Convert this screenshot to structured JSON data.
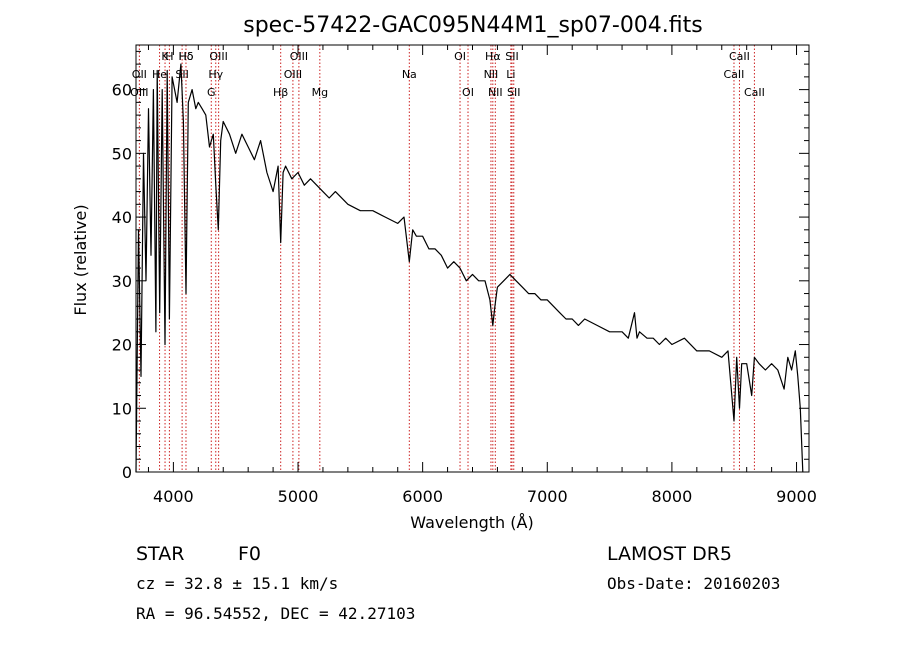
{
  "chart_data": {
    "type": "line",
    "title": "spec-57422-GAC095N44M1_sp07-004.fits",
    "xlabel": "Wavelength (Å)",
    "ylabel": "Flux (relative)",
    "xlim": [
      3700,
      9100
    ],
    "ylim": [
      0,
      67
    ],
    "xticks": [
      4000,
      5000,
      6000,
      7000,
      8000,
      9000
    ],
    "yticks": [
      0,
      10,
      20,
      30,
      40,
      50,
      60
    ],
    "grid": false,
    "series": [
      {
        "x": [
          3700,
          3720,
          3740,
          3760,
          3780,
          3800,
          3820,
          3840,
          3860,
          3870,
          3890,
          3910,
          3933,
          3950,
          3968,
          3990,
          4010,
          4030,
          4060,
          4080,
          4101,
          4120,
          4150,
          4180,
          4200,
          4230,
          4260,
          4290,
          4320,
          4340,
          4360,
          4380,
          4400,
          4450,
          4500,
          4550,
          4600,
          4650,
          4700,
          4750,
          4800,
          4840,
          4861,
          4880,
          4900,
          4950,
          5000,
          5050,
          5100,
          5150,
          5200,
          5250,
          5300,
          5400,
          5500,
          5600,
          5700,
          5800,
          5850,
          5893,
          5920,
          5950,
          6000,
          6050,
          6100,
          6150,
          6200,
          6250,
          6300,
          6350,
          6400,
          6450,
          6500,
          6540,
          6563,
          6580,
          6600,
          6650,
          6700,
          6750,
          6800,
          6850,
          6900,
          6950,
          7000,
          7050,
          7100,
          7150,
          7200,
          7250,
          7300,
          7400,
          7500,
          7600,
          7650,
          7700,
          7720,
          7740,
          7800,
          7850,
          7900,
          7950,
          8000,
          8100,
          8200,
          8300,
          8400,
          8450,
          8498,
          8520,
          8542,
          8560,
          8600,
          8640,
          8662,
          8700,
          8750,
          8800,
          8850,
          8900,
          8930,
          8960,
          8990,
          9010,
          9030,
          9050
        ],
        "values": [
          0,
          38,
          15,
          50,
          30,
          57,
          34,
          60,
          22,
          63,
          25,
          60,
          20,
          63,
          24,
          62,
          60,
          58,
          64,
          55,
          28,
          58,
          60,
          57,
          58,
          57,
          56,
          51,
          53,
          45,
          38,
          52,
          55,
          53,
          50,
          53,
          51,
          49,
          52,
          47,
          44,
          48,
          36,
          47,
          48,
          46,
          47,
          45,
          46,
          45,
          44,
          43,
          44,
          42,
          41,
          41,
          40,
          39,
          40,
          33,
          38,
          37,
          37,
          35,
          35,
          34,
          32,
          33,
          32,
          30,
          31,
          30,
          30,
          27,
          23,
          26,
          29,
          30,
          31,
          30,
          29,
          28,
          28,
          27,
          27,
          26,
          25,
          24,
          24,
          23,
          24,
          23,
          22,
          22,
          21,
          25,
          21,
          22,
          21,
          21,
          20,
          21,
          20,
          21,
          19,
          19,
          18,
          19,
          8,
          18,
          10,
          17,
          17,
          12,
          18,
          17,
          16,
          17,
          16,
          13,
          18,
          16,
          19,
          15,
          10,
          0
        ]
      }
    ],
    "line_markers": [
      {
        "label": "Hδ",
        "x": 4101,
        "row": 0
      },
      {
        "label": "K",
        "x": 3933,
        "row": 0
      },
      {
        "label": "H",
        "x": 3968,
        "row": 0
      },
      {
        "label": "Hδ",
        "x": 4101,
        "row": 0
      },
      {
        "label": "OIII",
        "x": 4363,
        "row": 0
      },
      {
        "label": "OIII",
        "x": 5007,
        "row": 0
      },
      {
        "label": "OI",
        "x": 6300,
        "row": 0
      },
      {
        "label": "Hα",
        "x": 6563,
        "row": 0
      },
      {
        "label": "SII",
        "x": 6717,
        "row": 0
      },
      {
        "label": "CaII",
        "x": 8542,
        "row": 0
      },
      {
        "label": "OII",
        "x": 3727,
        "row": 1
      },
      {
        "label": "He",
        "x": 3889,
        "row": 1
      },
      {
        "label": "SII",
        "x": 4070,
        "row": 1
      },
      {
        "label": "Hγ",
        "x": 4340,
        "row": 1
      },
      {
        "label": "OIII",
        "x": 4959,
        "row": 1
      },
      {
        "label": "Na",
        "x": 5893,
        "row": 1
      },
      {
        "label": "NII",
        "x": 6548,
        "row": 1
      },
      {
        "label": "Li",
        "x": 6708,
        "row": 1
      },
      {
        "label": "CaII",
        "x": 8498,
        "row": 1
      },
      {
        "label": "OIII",
        "x": 3727,
        "row": 2
      },
      {
        "label": "G",
        "x": 4304,
        "row": 2
      },
      {
        "label": "Hβ",
        "x": 4861,
        "row": 2
      },
      {
        "label": "Mg",
        "x": 5175,
        "row": 2
      },
      {
        "label": "OI",
        "x": 6364,
        "row": 2
      },
      {
        "label": "NII",
        "x": 6583,
        "row": 2
      },
      {
        "label": "SII",
        "x": 6731,
        "row": 2
      },
      {
        "label": "CaII",
        "x": 8662,
        "row": 2
      }
    ],
    "marker_color": "#cc2222",
    "line_color": "#000000"
  },
  "footer": {
    "object_class": "STAR",
    "subclass": "F0",
    "survey": "LAMOST  DR5",
    "redshift": "cz = 32.8 ± 15.1 km/s",
    "obs_date": "Obs-Date: 20160203",
    "coords": "RA =  96.54552, DEC =  42.27103"
  }
}
